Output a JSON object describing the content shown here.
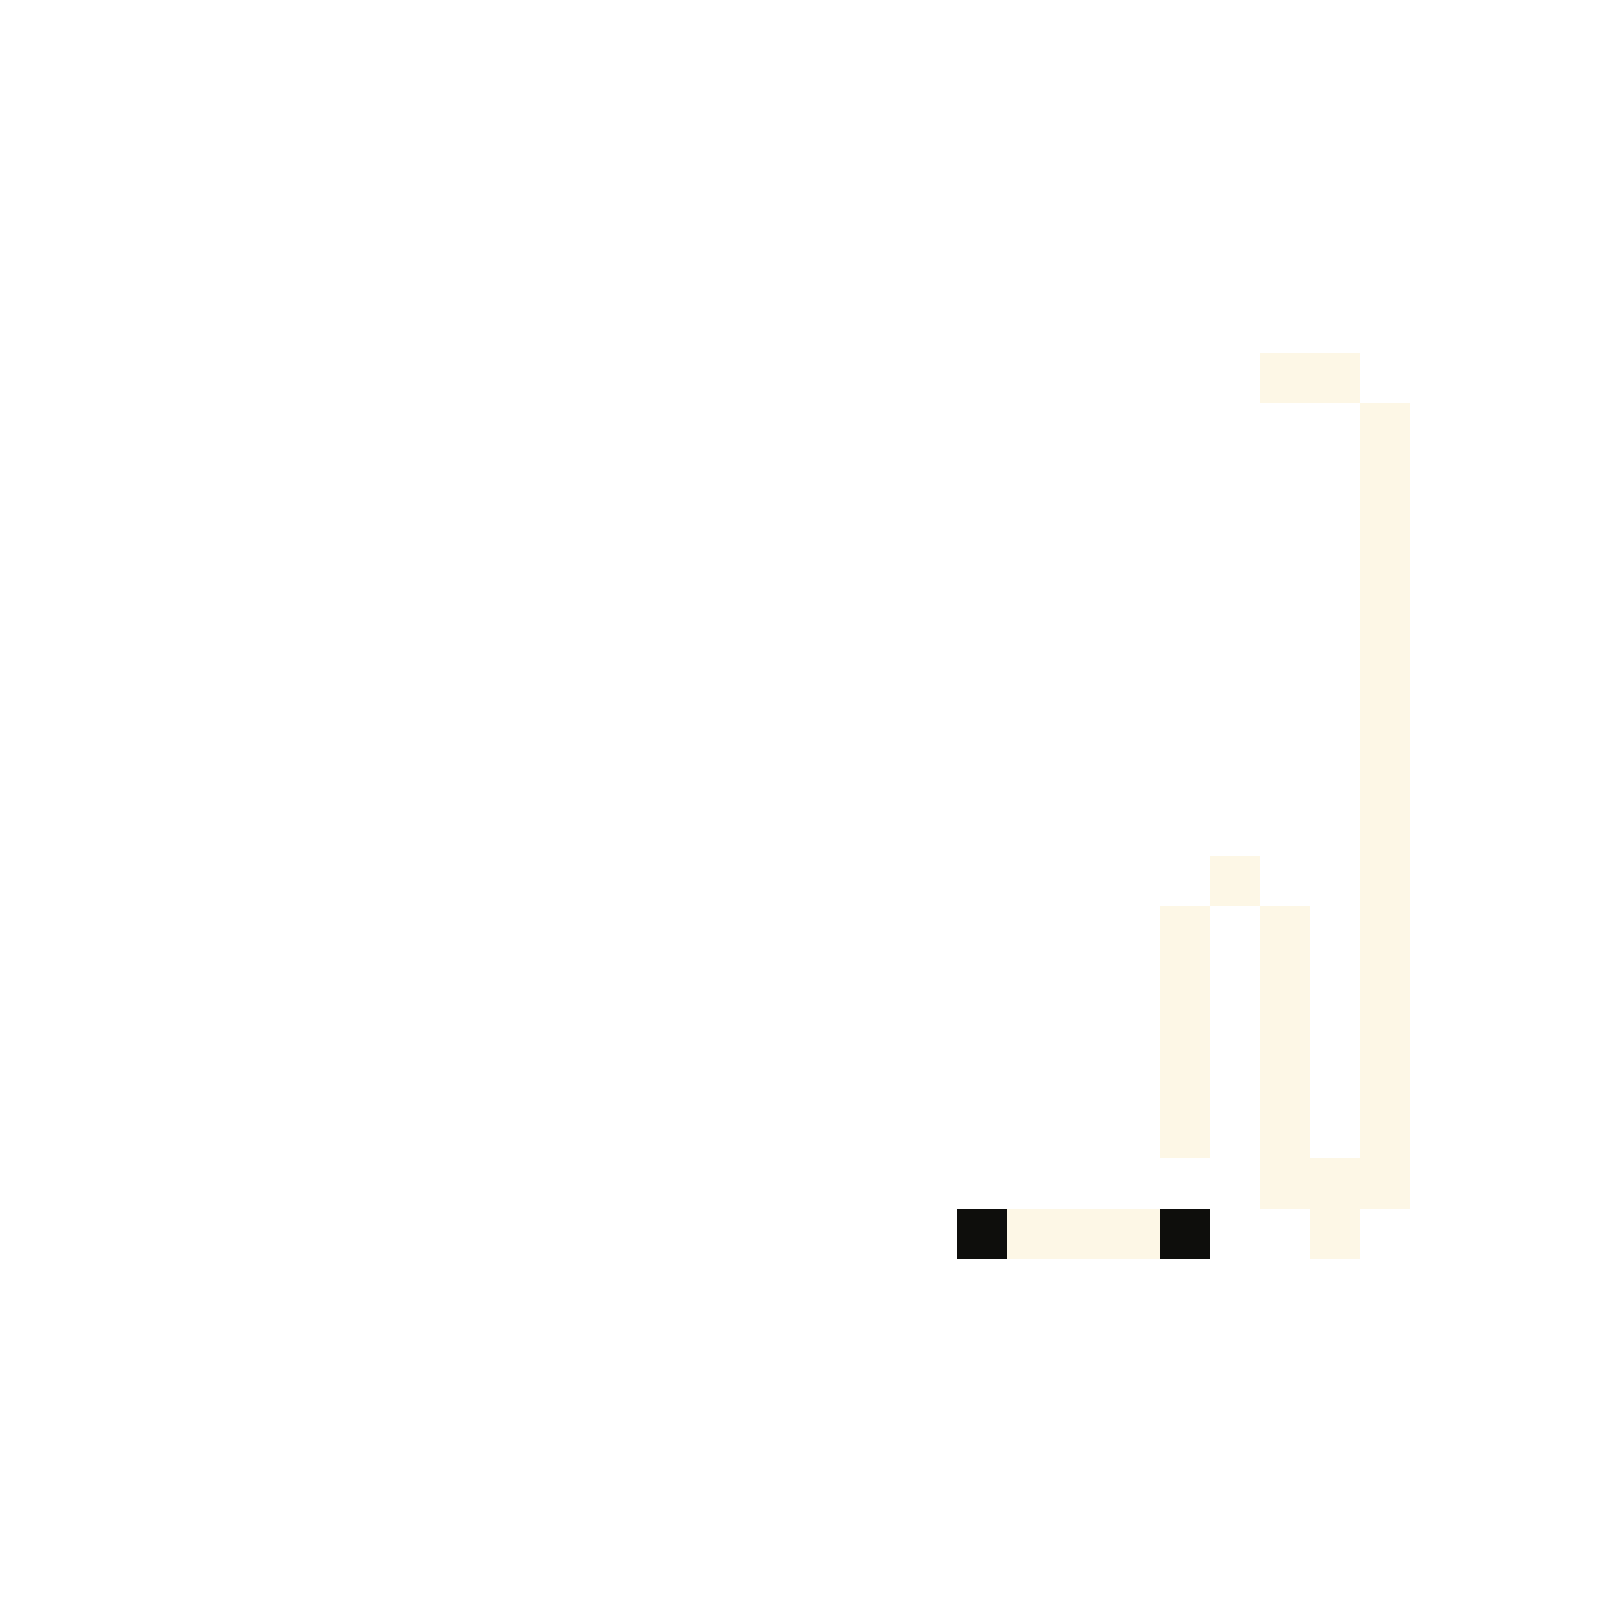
{
  "artwork": {
    "background_color": "#ffffff",
    "palette": {
      "cream": "#fdf7e6",
      "black": "#0e0e0c"
    },
    "icon": "pixel-art-sprite"
  }
}
